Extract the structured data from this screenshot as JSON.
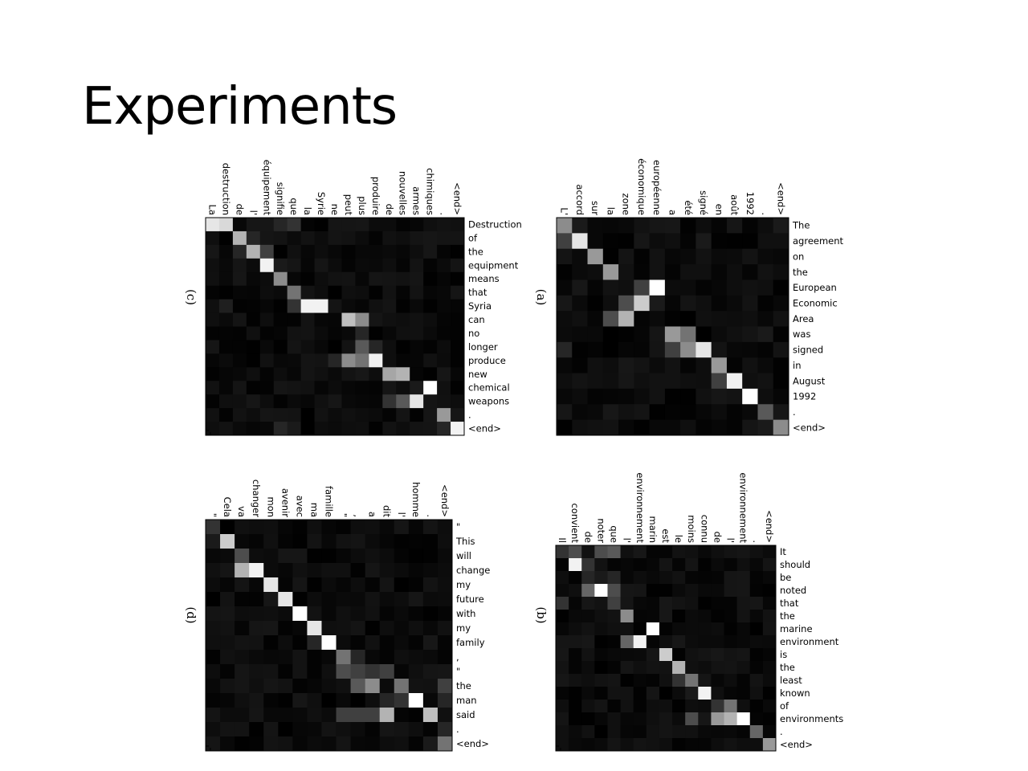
{
  "slide": {
    "title": "Experiments"
  },
  "chart_data": [
    {
      "type": "heatmap",
      "panel_label": "(c)",
      "colormap": "gray",
      "x": [
        "La",
        "destruction",
        "de",
        "l'",
        "équipement",
        "signifie",
        "que",
        "la",
        "Syrie",
        "ne",
        "peut",
        "plus",
        "produire",
        "de",
        "nouvelles",
        "armes",
        "chimiques",
        ".",
        "<end>"
      ],
      "y": [
        "Destruction",
        "of",
        "the",
        "equipment",
        "means",
        "that",
        "Syria",
        "can",
        "no",
        "longer",
        "produce",
        "new",
        "chemical",
        "weapons",
        ".",
        "<end>"
      ],
      "align": [
        {
          "t": 0,
          "s": [
            [
              0,
              0.9
            ],
            [
              1,
              0.85
            ],
            [
              5,
              0.15
            ],
            [
              6,
              0.2
            ]
          ]
        },
        {
          "t": 1,
          "s": [
            [
              2,
              0.7
            ],
            [
              3,
              0.15
            ]
          ]
        },
        {
          "t": 2,
          "s": [
            [
              3,
              0.7
            ],
            [
              4,
              0.25
            ],
            [
              2,
              0.15
            ]
          ]
        },
        {
          "t": 3,
          "s": [
            [
              4,
              0.95
            ],
            [
              5,
              0.1
            ]
          ]
        },
        {
          "t": 4,
          "s": [
            [
              5,
              0.55
            ]
          ]
        },
        {
          "t": 5,
          "s": [
            [
              6,
              0.45
            ],
            [
              8,
              0.05
            ]
          ]
        },
        {
          "t": 6,
          "s": [
            [
              8,
              0.95
            ],
            [
              7,
              0.95
            ],
            [
              6,
              0.2
            ],
            [
              1,
              0.12
            ]
          ]
        },
        {
          "t": 7,
          "s": [
            [
              10,
              0.75
            ],
            [
              11,
              0.55
            ]
          ]
        },
        {
          "t": 8,
          "s": [
            [
              11,
              0.15
            ]
          ]
        },
        {
          "t": 9,
          "s": [
            [
              11,
              0.35
            ],
            [
              12,
              0.15
            ]
          ]
        },
        {
          "t": 10,
          "s": [
            [
              12,
              0.95
            ],
            [
              11,
              0.45
            ],
            [
              10,
              0.55
            ],
            [
              9,
              0.15
            ]
          ]
        },
        {
          "t": 11,
          "s": [
            [
              14,
              0.7
            ],
            [
              13,
              0.65
            ],
            [
              12,
              0.05
            ]
          ]
        },
        {
          "t": 12,
          "s": [
            [
              16,
              1.0
            ],
            [
              15,
              0.1
            ],
            [
              14,
              0.05
            ]
          ]
        },
        {
          "t": 13,
          "s": [
            [
              15,
              0.9
            ],
            [
              14,
              0.35
            ],
            [
              13,
              0.2
            ]
          ]
        },
        {
          "t": 14,
          "s": [
            [
              17,
              0.6
            ]
          ]
        },
        {
          "t": 15,
          "s": [
            [
              18,
              0.95
            ],
            [
              17,
              0.15
            ],
            [
              6,
              0.1
            ],
            [
              5,
              0.15
            ]
          ]
        }
      ]
    },
    {
      "type": "heatmap",
      "panel_label": "(a)",
      "colormap": "gray",
      "x": [
        "L'",
        "accord",
        "sur",
        "la",
        "zone",
        "économique",
        "européenne",
        "a",
        "été",
        "signé",
        "en",
        "août",
        "1992",
        ".",
        "<end>"
      ],
      "y": [
        "The",
        "agreement",
        "on",
        "the",
        "European",
        "Economic",
        "Area",
        "was",
        "signed",
        "in",
        "August",
        "1992",
        ".",
        "<end>"
      ],
      "align": [
        {
          "t": 0,
          "s": [
            [
              0,
              0.55
            ],
            [
              1,
              0.1
            ],
            [
              13,
              0.05
            ],
            [
              14,
              0.1
            ]
          ]
        },
        {
          "t": 1,
          "s": [
            [
              1,
              0.9
            ],
            [
              0,
              0.25
            ],
            [
              9,
              0.1
            ]
          ]
        },
        {
          "t": 2,
          "s": [
            [
              2,
              0.6
            ]
          ]
        },
        {
          "t": 3,
          "s": [
            [
              3,
              0.6
            ],
            [
              2,
              0.05
            ]
          ]
        },
        {
          "t": 4,
          "s": [
            [
              6,
              1.0
            ],
            [
              5,
              0.25
            ]
          ]
        },
        {
          "t": 5,
          "s": [
            [
              5,
              0.8
            ],
            [
              4,
              0.3
            ],
            [
              6,
              0.1
            ]
          ]
        },
        {
          "t": 6,
          "s": [
            [
              4,
              0.7
            ],
            [
              3,
              0.3
            ]
          ]
        },
        {
          "t": 7,
          "s": [
            [
              8,
              0.45
            ],
            [
              7,
              0.6
            ],
            [
              13,
              0.1
            ]
          ]
        },
        {
          "t": 8,
          "s": [
            [
              9,
              0.9
            ],
            [
              8,
              0.55
            ],
            [
              7,
              0.25
            ],
            [
              0,
              0.15
            ]
          ]
        },
        {
          "t": 9,
          "s": [
            [
              10,
              0.6
            ]
          ]
        },
        {
          "t": 10,
          "s": [
            [
              11,
              0.95
            ],
            [
              10,
              0.25
            ]
          ]
        },
        {
          "t": 11,
          "s": [
            [
              12,
              1.0
            ]
          ]
        },
        {
          "t": 12,
          "s": [
            [
              13,
              0.35
            ]
          ]
        },
        {
          "t": 13,
          "s": [
            [
              14,
              0.55
            ],
            [
              13,
              0.1
            ]
          ]
        }
      ]
    },
    {
      "type": "heatmap",
      "panel_label": "(d)",
      "colormap": "gray",
      "x": [
        "\"",
        "Cela",
        "va",
        "changer",
        "mon",
        "avenir",
        "avec",
        "ma",
        "famille",
        "\"",
        ",",
        "a",
        "dit",
        "l'",
        "homme",
        ".",
        "<end>"
      ],
      "y": [
        "\"",
        "This",
        "will",
        "change",
        "my",
        "future",
        "with",
        "my",
        "family",
        ",",
        "\"",
        "the",
        "man",
        "said",
        ".",
        "<end>"
      ],
      "align": [
        {
          "t": 0,
          "s": [
            [
              0,
              0.2
            ]
          ]
        },
        {
          "t": 1,
          "s": [
            [
              1,
              0.8
            ],
            [
              0,
              0.1
            ]
          ]
        },
        {
          "t": 2,
          "s": [
            [
              2,
              0.3
            ]
          ]
        },
        {
          "t": 3,
          "s": [
            [
              3,
              0.95
            ],
            [
              2,
              0.7
            ]
          ]
        },
        {
          "t": 4,
          "s": [
            [
              4,
              0.9
            ]
          ]
        },
        {
          "t": 5,
          "s": [
            [
              5,
              0.9
            ]
          ]
        },
        {
          "t": 6,
          "s": [
            [
              6,
              1.0
            ]
          ]
        },
        {
          "t": 7,
          "s": [
            [
              7,
              0.9
            ]
          ]
        },
        {
          "t": 8,
          "s": [
            [
              8,
              1.0
            ],
            [
              7,
              0.15
            ]
          ]
        },
        {
          "t": 9,
          "s": [
            [
              9,
              0.45
            ],
            [
              10,
              0.15
            ]
          ]
        },
        {
          "t": 10,
          "s": [
            [
              9,
              0.3
            ],
            [
              10,
              0.25
            ],
            [
              11,
              0.2
            ],
            [
              12,
              0.25
            ]
          ]
        },
        {
          "t": 11,
          "s": [
            [
              11,
              0.55
            ],
            [
              10,
              0.35
            ],
            [
              13,
              0.45
            ],
            [
              16,
              0.25
            ]
          ]
        },
        {
          "t": 12,
          "s": [
            [
              14,
              1.0
            ],
            [
              13,
              0.2
            ],
            [
              12,
              0.15
            ],
            [
              16,
              0.15
            ]
          ]
        },
        {
          "t": 13,
          "s": [
            [
              15,
              0.75
            ],
            [
              12,
              0.7
            ],
            [
              11,
              0.25
            ],
            [
              10,
              0.25
            ],
            [
              9,
              0.25
            ]
          ]
        },
        {
          "t": 14,
          "s": [
            [
              16,
              0.15
            ]
          ]
        },
        {
          "t": 15,
          "s": [
            [
              16,
              0.45
            ],
            [
              15,
              0.1
            ]
          ]
        }
      ]
    },
    {
      "type": "heatmap",
      "panel_label": "(b)",
      "colormap": "gray",
      "x": [
        "Il",
        "convient",
        "de",
        "noter",
        "que",
        "l'",
        "environnement",
        "marin",
        "est",
        "le",
        "moins",
        "connu",
        "de",
        "l'",
        "environnement",
        ".",
        "<end>"
      ],
      "y": [
        "It",
        "should",
        "be",
        "noted",
        "that",
        "the",
        "marine",
        "environment",
        "is",
        "the",
        "least",
        "known",
        "of",
        "environments",
        ".",
        "<end>"
      ],
      "align": [
        {
          "t": 0,
          "s": [
            [
              0,
              0.2
            ],
            [
              1,
              0.3
            ],
            [
              3,
              0.3
            ],
            [
              4,
              0.35
            ]
          ]
        },
        {
          "t": 1,
          "s": [
            [
              1,
              0.95
            ],
            [
              2,
              0.2
            ]
          ]
        },
        {
          "t": 2,
          "s": [
            [
              2,
              0.15
            ],
            [
              3,
              0.1
            ],
            [
              4,
              0.15
            ]
          ]
        },
        {
          "t": 3,
          "s": [
            [
              3,
              1.0
            ],
            [
              2,
              0.4
            ],
            [
              4,
              0.3
            ]
          ]
        },
        {
          "t": 4,
          "s": [
            [
              4,
              0.25
            ],
            [
              0,
              0.2
            ]
          ]
        },
        {
          "t": 5,
          "s": [
            [
              5,
              0.55
            ]
          ]
        },
        {
          "t": 6,
          "s": [
            [
              7,
              1.0
            ]
          ]
        },
        {
          "t": 7,
          "s": [
            [
              6,
              0.95
            ],
            [
              5,
              0.4
            ]
          ]
        },
        {
          "t": 8,
          "s": [
            [
              8,
              0.8
            ]
          ]
        },
        {
          "t": 9,
          "s": [
            [
              9,
              0.7
            ]
          ]
        },
        {
          "t": 10,
          "s": [
            [
              10,
              0.45
            ],
            [
              9,
              0.2
            ]
          ]
        },
        {
          "t": 11,
          "s": [
            [
              11,
              0.95
            ],
            [
              10,
              0.1
            ]
          ]
        },
        {
          "t": 12,
          "s": [
            [
              13,
              0.45
            ],
            [
              12,
              0.2
            ]
          ]
        },
        {
          "t": 13,
          "s": [
            [
              14,
              1.0
            ],
            [
              13,
              0.7
            ],
            [
              12,
              0.6
            ],
            [
              10,
              0.3
            ]
          ]
        },
        {
          "t": 14,
          "s": [
            [
              15,
              0.4
            ]
          ]
        },
        {
          "t": 15,
          "s": [
            [
              16,
              0.6
            ]
          ]
        }
      ]
    }
  ]
}
